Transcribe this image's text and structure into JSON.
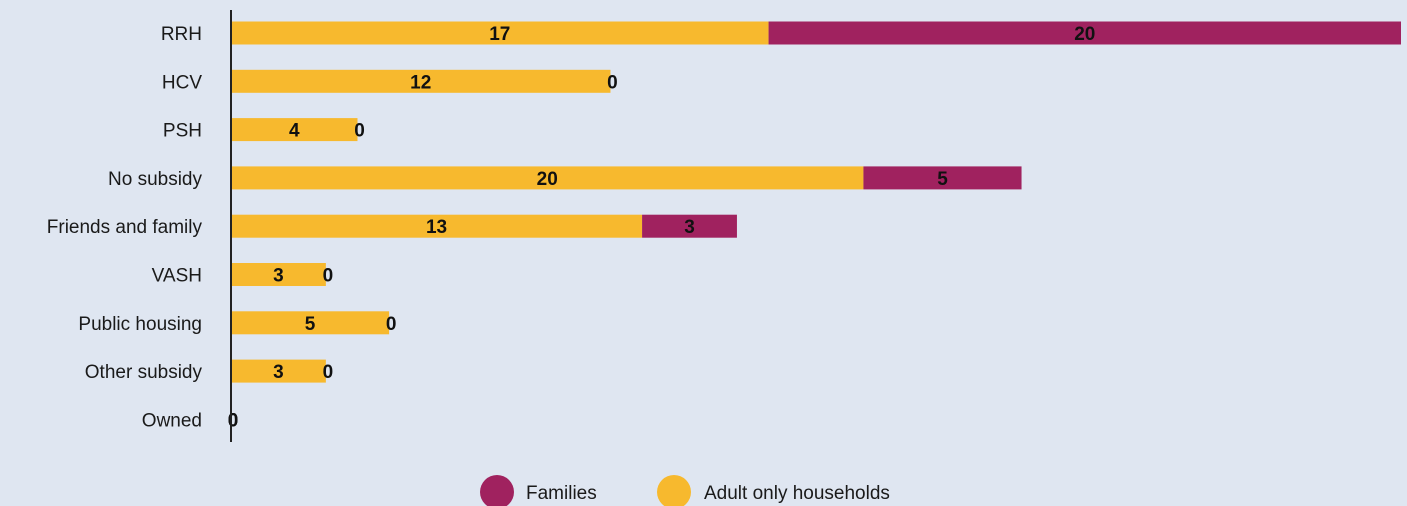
{
  "chart_data": {
    "type": "bar",
    "orientation": "horizontal",
    "stacked": true,
    "categories": [
      "RRH",
      "HCV",
      "PSH",
      "No subsidy",
      "Friends and family",
      "VASH",
      "Public housing",
      "Other subsidy",
      "Owned"
    ],
    "series": [
      {
        "name": "Adult only households",
        "color": "#f7b92e",
        "values": [
          17,
          12,
          4,
          20,
          13,
          3,
          5,
          3,
          0
        ]
      },
      {
        "name": "Families",
        "color": "#a0225f",
        "values": [
          20,
          0,
          0,
          5,
          3,
          0,
          0,
          0,
          0
        ]
      }
    ],
    "legend_order": [
      "Families",
      "Adult only households"
    ],
    "legend_position": "bottom-center",
    "xlim": [
      0,
      37
    ],
    "grid": false
  }
}
